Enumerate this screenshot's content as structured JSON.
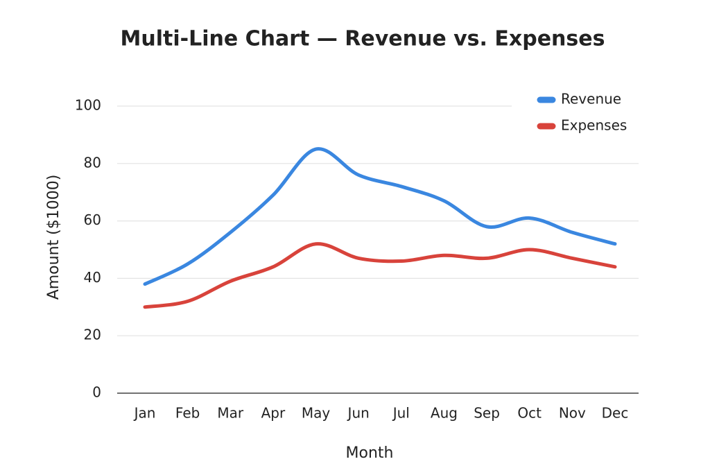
{
  "chart_data": {
    "type": "line",
    "title": "Multi-Line Chart — Revenue vs. Expenses",
    "x_label": "Month",
    "y_label": "Amount ($1000)",
    "categories": [
      "Jan",
      "Feb",
      "Mar",
      "Apr",
      "May",
      "Jun",
      "Jul",
      "Aug",
      "Sep",
      "Oct",
      "Nov",
      "Dec"
    ],
    "series": [
      {
        "name": "Revenue",
        "color": "#3a87e0",
        "values": [
          38,
          45,
          56,
          69,
          85,
          76,
          72,
          67,
          58,
          61,
          56,
          52
        ]
      },
      {
        "name": "Expenses",
        "color": "#d8433b",
        "values": [
          30,
          32,
          39,
          44,
          52,
          47,
          46,
          48,
          47,
          50,
          47,
          44
        ]
      }
    ],
    "ylim": [
      0,
      100
    ],
    "yticks": [
      0,
      20,
      40,
      60,
      80,
      100
    ],
    "grid": true,
    "legend": "upper right"
  }
}
